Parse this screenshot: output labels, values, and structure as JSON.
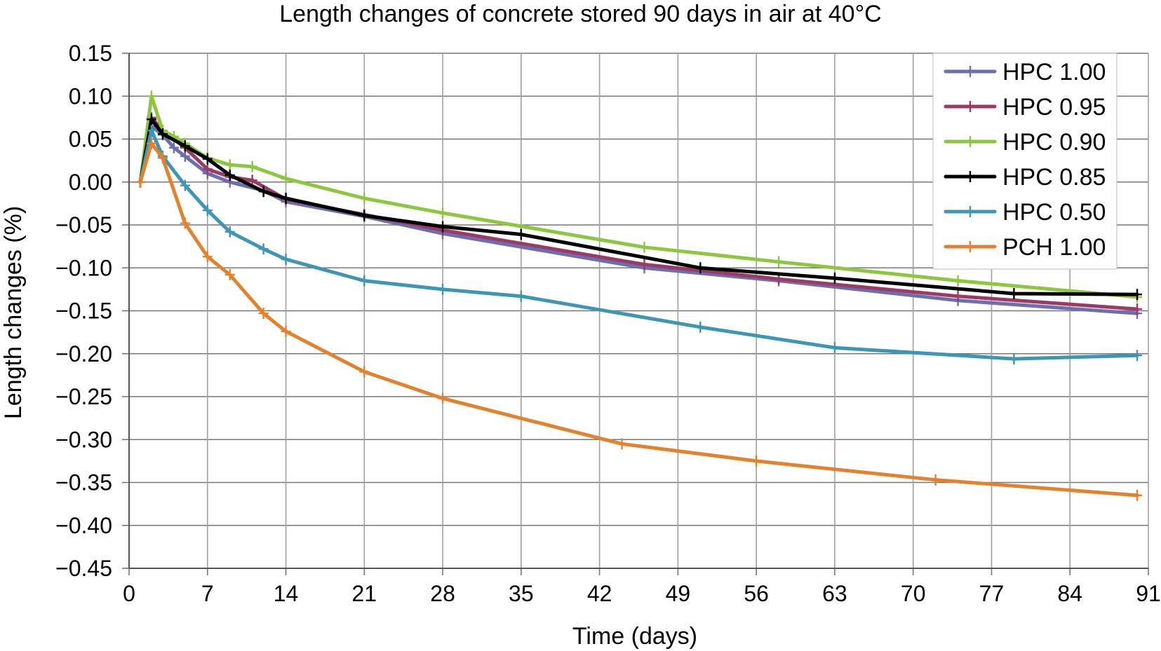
{
  "chart_data": {
    "type": "line",
    "title": "Length changes of concrete stored 90 days in air at 40°C",
    "xlabel": "Time (days)",
    "ylabel": "Length changes (%)",
    "xlim": [
      0,
      91
    ],
    "ylim": [
      -0.45,
      0.15
    ],
    "x_ticks": [
      0,
      7,
      14,
      21,
      28,
      35,
      42,
      49,
      56,
      63,
      70,
      77,
      84,
      91
    ],
    "x_tick_labels": [
      "0",
      "7",
      "14",
      "21",
      "28",
      "35",
      "42",
      "49",
      "56",
      "63",
      "70",
      "77",
      "84",
      "91"
    ],
    "y_ticks": [
      0.15,
      0.1,
      0.05,
      0.0,
      -0.05,
      -0.1,
      -0.15,
      -0.2,
      -0.25,
      -0.3,
      -0.35,
      -0.4,
      -0.45
    ],
    "y_tick_labels": [
      "0.15",
      "0.10",
      "0.05",
      "0.00",
      "−0.05",
      "−0.10",
      "−0.15",
      "−0.20",
      "−0.25",
      "−0.30",
      "−0.35",
      "−0.40",
      "−0.45"
    ],
    "grid": true,
    "legend_position": "top-right",
    "series": [
      {
        "name": "HPC 1.00",
        "color": "#6b6fb0",
        "x": [
          1,
          2,
          3,
          4,
          5,
          7,
          9,
          12,
          14,
          21,
          28,
          46,
          58,
          74,
          90
        ],
        "y": [
          0.0,
          0.065,
          0.055,
          0.04,
          0.03,
          0.01,
          0.0,
          -0.01,
          -0.023,
          -0.04,
          -0.06,
          -0.1,
          -0.115,
          -0.138,
          -0.153
        ]
      },
      {
        "name": "HPC 0.95",
        "color": "#9b3b65",
        "x": [
          1,
          2,
          3,
          5,
          7,
          9,
          11,
          14,
          21,
          28,
          46,
          58,
          74,
          90
        ],
        "y": [
          0.0,
          0.075,
          0.06,
          0.04,
          0.015,
          0.006,
          0.002,
          -0.02,
          -0.038,
          -0.056,
          -0.096,
          -0.113,
          -0.133,
          -0.148
        ]
      },
      {
        "name": "HPC 0.90",
        "color": "#8dc63f",
        "x": [
          1,
          2,
          3,
          4,
          5,
          7,
          9,
          11,
          14,
          21,
          28,
          46,
          58,
          74,
          90
        ],
        "y": [
          0.0,
          0.1,
          0.06,
          0.053,
          0.045,
          0.028,
          0.02,
          0.018,
          0.004,
          -0.019,
          -0.036,
          -0.076,
          -0.093,
          -0.115,
          -0.134
        ]
      },
      {
        "name": "HPC 0.85",
        "color": "#000000",
        "x": [
          1,
          2,
          3,
          5,
          7,
          9,
          12,
          14,
          21,
          28,
          35,
          51,
          63,
          79,
          90
        ],
        "y": [
          0.0,
          0.073,
          0.056,
          0.042,
          0.027,
          0.008,
          -0.011,
          -0.019,
          -0.039,
          -0.052,
          -0.061,
          -0.1,
          -0.112,
          -0.13,
          -0.131
        ]
      },
      {
        "name": "HPC 0.50",
        "color": "#3c96b4",
        "x": [
          1,
          2,
          3,
          5,
          7,
          9,
          12,
          14,
          21,
          28,
          35,
          51,
          63,
          79,
          90
        ],
        "y": [
          0.0,
          0.06,
          0.03,
          -0.004,
          -0.033,
          -0.058,
          -0.078,
          -0.09,
          -0.115,
          -0.125,
          -0.133,
          -0.169,
          -0.193,
          -0.206,
          -0.202
        ]
      },
      {
        "name": "PCH 1.00",
        "color": "#e3822e",
        "x": [
          1,
          2,
          3,
          5,
          7,
          9,
          12,
          14,
          21,
          28,
          44,
          56,
          72,
          90
        ],
        "y": [
          0.0,
          0.045,
          0.028,
          -0.048,
          -0.087,
          -0.108,
          -0.153,
          -0.174,
          -0.221,
          -0.252,
          -0.305,
          -0.325,
          -0.347,
          -0.365
        ]
      }
    ]
  }
}
